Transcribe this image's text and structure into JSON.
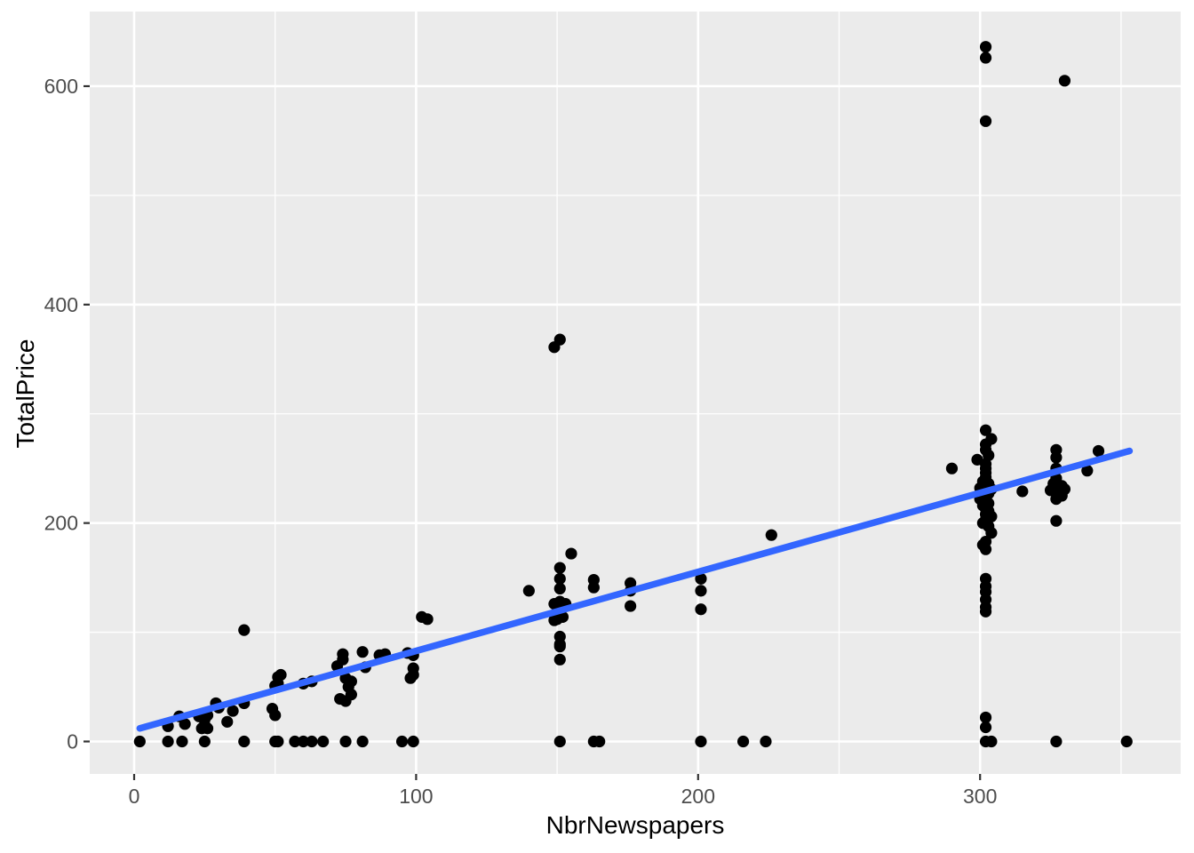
{
  "chart_data": {
    "type": "scatter",
    "title": "",
    "xlabel": "NbrNewspapers",
    "ylabel": "TotalPrice",
    "x_ticks": [
      0,
      100,
      200,
      300
    ],
    "x_minor_ticks": [
      50,
      150,
      250,
      350
    ],
    "y_ticks": [
      0,
      200,
      400,
      600
    ],
    "y_minor_ticks": [
      100,
      300,
      500
    ],
    "xlim": [
      -16,
      371
    ],
    "ylim": [
      -30,
      668
    ],
    "grid": "on",
    "legend_position": "none",
    "panel_background": "#EBEBEB",
    "grid_color": "#FFFFFF",
    "point_color": "#000000",
    "tick_label_color": "#4D4D4D",
    "axis_title_color": "#000000",
    "smooth_line": {
      "color": "#3366FF",
      "x1": 2,
      "y1": 12,
      "x2": 353,
      "y2": 266
    },
    "points": [
      [
        2,
        0
      ],
      [
        12,
        0
      ],
      [
        17,
        0
      ],
      [
        25,
        0
      ],
      [
        39,
        0
      ],
      [
        50,
        0
      ],
      [
        51,
        0
      ],
      [
        57,
        0
      ],
      [
        60,
        0
      ],
      [
        63,
        0
      ],
      [
        67,
        0
      ],
      [
        75,
        0
      ],
      [
        81,
        0
      ],
      [
        95,
        0
      ],
      [
        99,
        0
      ],
      [
        151,
        0
      ],
      [
        163,
        0
      ],
      [
        165,
        0
      ],
      [
        201,
        0
      ],
      [
        216,
        0
      ],
      [
        224,
        0
      ],
      [
        302,
        0
      ],
      [
        304,
        0
      ],
      [
        327,
        0
      ],
      [
        352,
        0
      ],
      [
        12,
        14
      ],
      [
        16,
        23
      ],
      [
        18,
        16
      ],
      [
        23,
        23
      ],
      [
        25,
        20
      ],
      [
        26,
        24
      ],
      [
        25,
        15
      ],
      [
        24,
        12
      ],
      [
        26,
        12
      ],
      [
        29,
        35
      ],
      [
        30,
        31
      ],
      [
        33,
        18
      ],
      [
        35,
        28
      ],
      [
        39,
        35
      ],
      [
        39,
        102
      ],
      [
        49,
        30
      ],
      [
        50,
        24
      ],
      [
        50,
        51
      ],
      [
        51,
        59
      ],
      [
        51,
        53
      ],
      [
        52,
        61
      ],
      [
        60,
        53
      ],
      [
        63,
        55
      ],
      [
        72,
        69
      ],
      [
        73,
        39
      ],
      [
        74,
        80
      ],
      [
        74,
        75
      ],
      [
        75,
        58
      ],
      [
        75,
        37
      ],
      [
        76,
        50
      ],
      [
        77,
        55
      ],
      [
        77,
        43
      ],
      [
        81,
        82
      ],
      [
        82,
        68
      ],
      [
        87,
        79
      ],
      [
        89,
        80
      ],
      [
        97,
        81
      ],
      [
        99,
        79
      ],
      [
        99,
        67
      ],
      [
        99,
        61
      ],
      [
        98,
        58
      ],
      [
        102,
        114
      ],
      [
        104,
        112
      ],
      [
        140,
        138
      ],
      [
        149,
        361
      ],
      [
        151,
        368
      ],
      [
        155,
        172
      ],
      [
        151,
        159
      ],
      [
        151,
        149
      ],
      [
        151,
        140
      ],
      [
        149,
        126
      ],
      [
        151,
        128
      ],
      [
        153,
        126
      ],
      [
        151,
        124
      ],
      [
        149,
        111
      ],
      [
        150,
        112
      ],
      [
        152,
        114
      ],
      [
        151,
        96
      ],
      [
        151,
        89
      ],
      [
        151,
        87
      ],
      [
        151,
        75
      ],
      [
        163,
        148
      ],
      [
        163,
        141
      ],
      [
        176,
        145
      ],
      [
        176,
        138
      ],
      [
        176,
        124
      ],
      [
        201,
        149
      ],
      [
        201,
        138
      ],
      [
        201,
        121
      ],
      [
        226,
        189
      ],
      [
        290,
        250
      ],
      [
        302,
        285
      ],
      [
        304,
        277
      ],
      [
        302,
        272
      ],
      [
        302,
        267
      ],
      [
        303,
        262
      ],
      [
        299,
        258
      ],
      [
        302,
        254
      ],
      [
        302,
        250
      ],
      [
        302,
        246
      ],
      [
        302,
        242
      ],
      [
        301,
        238
      ],
      [
        303,
        236
      ],
      [
        302,
        233
      ],
      [
        304,
        231
      ],
      [
        301,
        229
      ],
      [
        303,
        227
      ],
      [
        300,
        232
      ],
      [
        302,
        225
      ],
      [
        300,
        222
      ],
      [
        302,
        220
      ],
      [
        303,
        218
      ],
      [
        301,
        216
      ],
      [
        302,
        213
      ],
      [
        303,
        211
      ],
      [
        302,
        208
      ],
      [
        304,
        206
      ],
      [
        302,
        203
      ],
      [
        301,
        200
      ],
      [
        303,
        197
      ],
      [
        304,
        191
      ],
      [
        302,
        183
      ],
      [
        301,
        180
      ],
      [
        302,
        176
      ],
      [
        302,
        149
      ],
      [
        302,
        142
      ],
      [
        302,
        137
      ],
      [
        302,
        130
      ],
      [
        302,
        123
      ],
      [
        302,
        119
      ],
      [
        302,
        22
      ],
      [
        302,
        13
      ],
      [
        302,
        636
      ],
      [
        302,
        626
      ],
      [
        302,
        568
      ],
      [
        330,
        605
      ],
      [
        315,
        229
      ],
      [
        327,
        267
      ],
      [
        327,
        260
      ],
      [
        327,
        250
      ],
      [
        327,
        241
      ],
      [
        326,
        236
      ],
      [
        329,
        234
      ],
      [
        325,
        230
      ],
      [
        327,
        228
      ],
      [
        330,
        231
      ],
      [
        329,
        225
      ],
      [
        327,
        222
      ],
      [
        327,
        202
      ],
      [
        338,
        248
      ],
      [
        342,
        266
      ]
    ]
  }
}
